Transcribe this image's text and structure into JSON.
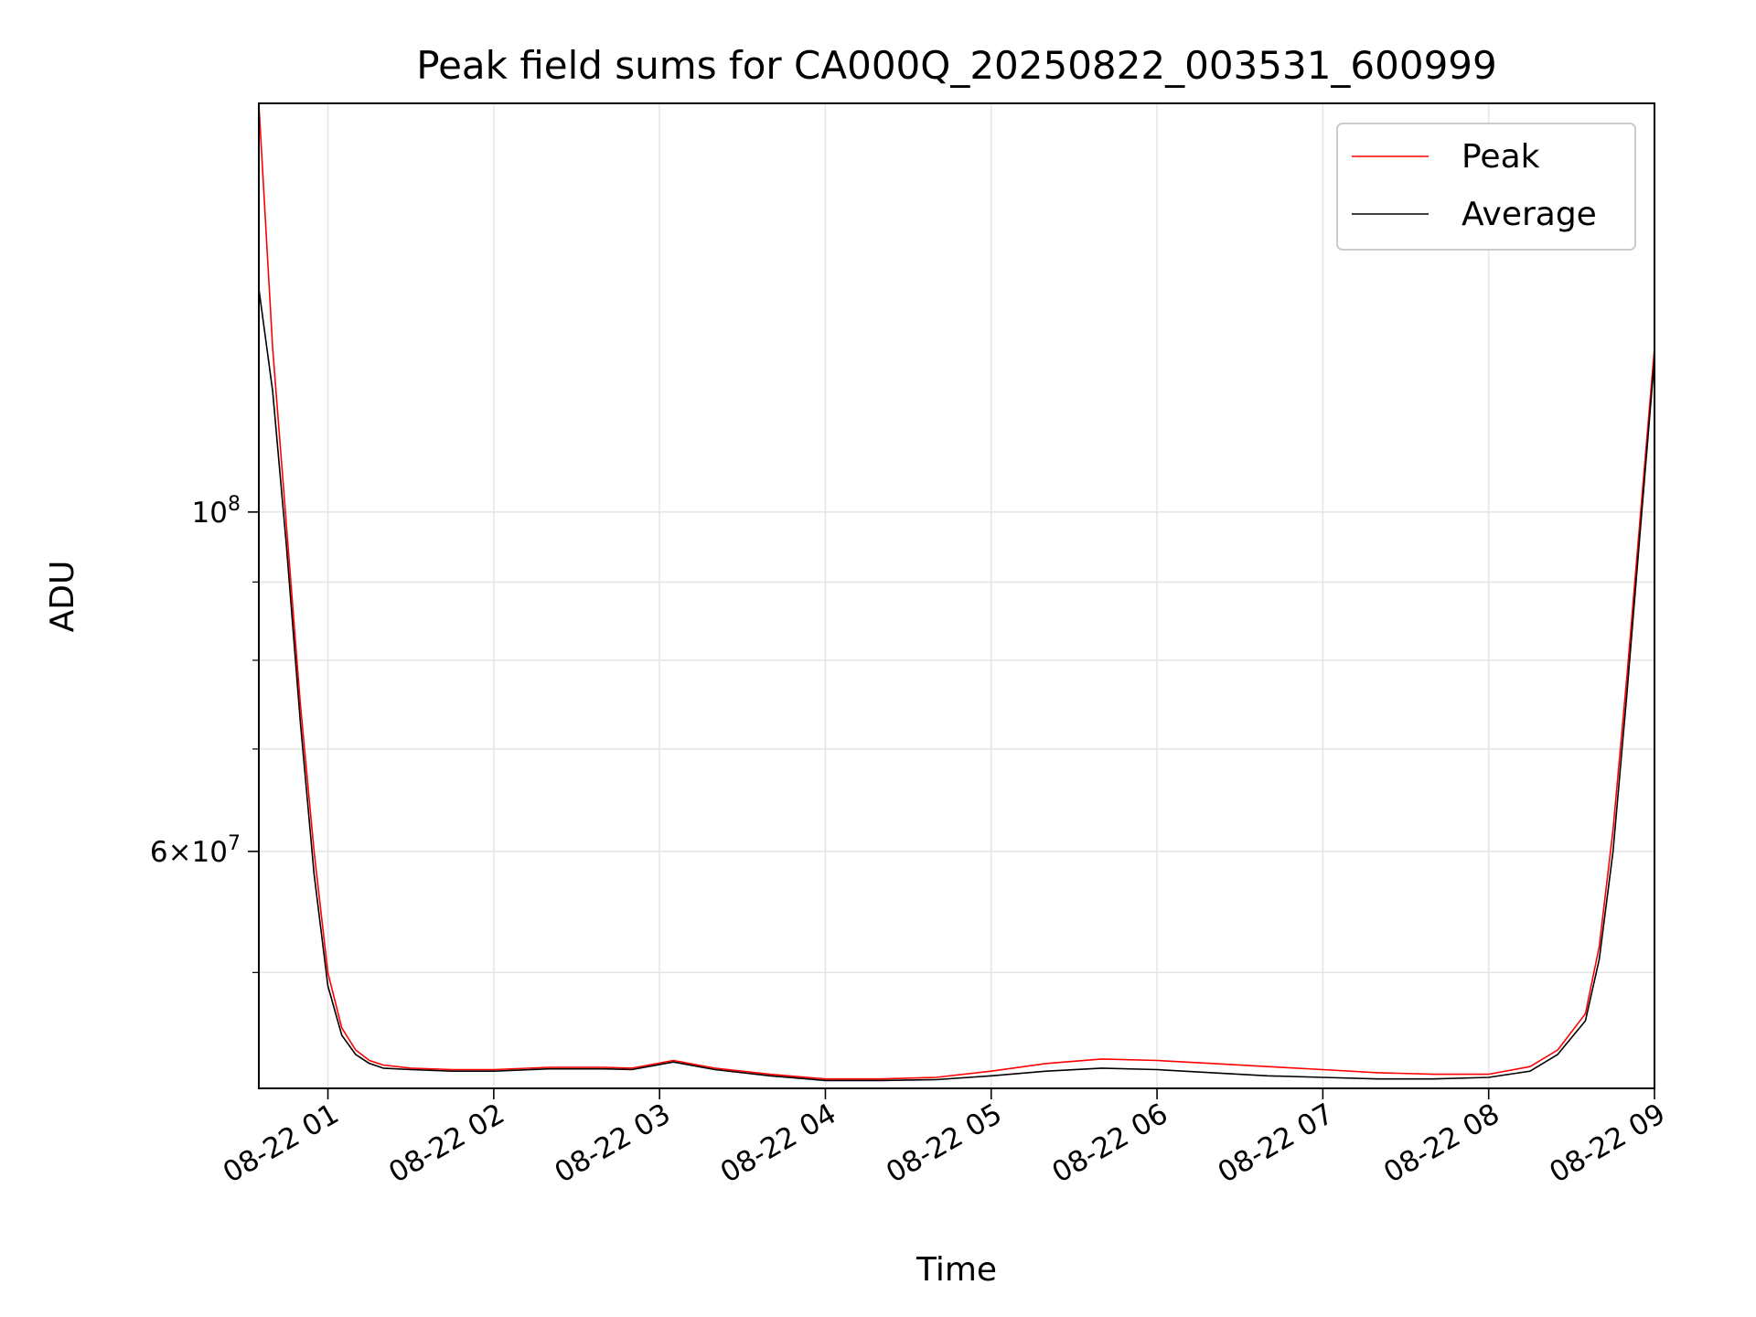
{
  "chart_data": {
    "type": "line",
    "title": "Peak field sums for CA000Q_20250822_003531_600999",
    "xlabel": "Time",
    "ylabel": "ADU",
    "yscale": "log",
    "grid": true,
    "legend_position": "top-right",
    "xlim": [
      "2025-08-22 00:35",
      "2025-08-22 09:00"
    ],
    "ylim": [
      42000000,
      185000000
    ],
    "x_ticks": [
      {
        "value": "2025-08-22 01:00",
        "label": "08-22 01"
      },
      {
        "value": "2025-08-22 02:00",
        "label": "08-22 02"
      },
      {
        "value": "2025-08-22 03:00",
        "label": "08-22 03"
      },
      {
        "value": "2025-08-22 04:00",
        "label": "08-22 04"
      },
      {
        "value": "2025-08-22 05:00",
        "label": "08-22 05"
      },
      {
        "value": "2025-08-22 06:00",
        "label": "08-22 06"
      },
      {
        "value": "2025-08-22 07:00",
        "label": "08-22 07"
      },
      {
        "value": "2025-08-22 08:00",
        "label": "08-22 08"
      },
      {
        "value": "2025-08-22 09:00",
        "label": "08-22 09"
      }
    ],
    "y_major_ticks": [
      {
        "value": 100000000,
        "base": "10",
        "exp": "8",
        "coef": ""
      },
      {
        "value": 60000000,
        "base": "10",
        "exp": "7",
        "coef": "6"
      }
    ],
    "y_minor_ticks": [
      50000000,
      70000000,
      80000000,
      90000000
    ],
    "series": [
      {
        "name": "Peak",
        "color": "#ff0000",
        "x": [
          "2025-08-22 00:35",
          "2025-08-22 00:40",
          "2025-08-22 00:45",
          "2025-08-22 00:50",
          "2025-08-22 00:55",
          "2025-08-22 01:00",
          "2025-08-22 01:05",
          "2025-08-22 01:10",
          "2025-08-22 01:15",
          "2025-08-22 01:20",
          "2025-08-22 01:30",
          "2025-08-22 01:45",
          "2025-08-22 02:00",
          "2025-08-22 02:20",
          "2025-08-22 02:40",
          "2025-08-22 02:50",
          "2025-08-22 03:05",
          "2025-08-22 03:20",
          "2025-08-22 03:40",
          "2025-08-22 04:00",
          "2025-08-22 04:20",
          "2025-08-22 04:40",
          "2025-08-22 05:00",
          "2025-08-22 05:20",
          "2025-08-22 05:40",
          "2025-08-22 06:00",
          "2025-08-22 06:20",
          "2025-08-22 06:40",
          "2025-08-22 07:00",
          "2025-08-22 07:20",
          "2025-08-22 07:40",
          "2025-08-22 08:00",
          "2025-08-22 08:15",
          "2025-08-22 08:25",
          "2025-08-22 08:35",
          "2025-08-22 08:40",
          "2025-08-22 08:45",
          "2025-08-22 08:50",
          "2025-08-22 08:55",
          "2025-08-22 09:00"
        ],
        "values": [
          185000000,
          128000000,
          98000000,
          75000000,
          60000000,
          50000000,
          46000000,
          44500000,
          43800000,
          43500000,
          43300000,
          43200000,
          43200000,
          43350000,
          43350000,
          43300000,
          43800000,
          43300000,
          42900000,
          42600000,
          42600000,
          42700000,
          43100000,
          43600000,
          43900000,
          43800000,
          43600000,
          43400000,
          43200000,
          43000000,
          42900000,
          42900000,
          43400000,
          44500000,
          47000000,
          52000000,
          62000000,
          78000000,
          100000000,
          128000000
        ]
      },
      {
        "name": "Average",
        "color": "#000000",
        "x": [
          "2025-08-22 00:35",
          "2025-08-22 00:40",
          "2025-08-22 00:45",
          "2025-08-22 00:50",
          "2025-08-22 00:55",
          "2025-08-22 01:00",
          "2025-08-22 01:05",
          "2025-08-22 01:10",
          "2025-08-22 01:15",
          "2025-08-22 01:20",
          "2025-08-22 01:30",
          "2025-08-22 01:45",
          "2025-08-22 02:00",
          "2025-08-22 02:20",
          "2025-08-22 02:40",
          "2025-08-22 02:50",
          "2025-08-22 03:05",
          "2025-08-22 03:20",
          "2025-08-22 03:40",
          "2025-08-22 04:00",
          "2025-08-22 04:20",
          "2025-08-22 04:40",
          "2025-08-22 05:00",
          "2025-08-22 05:20",
          "2025-08-22 05:40",
          "2025-08-22 06:00",
          "2025-08-22 06:20",
          "2025-08-22 06:40",
          "2025-08-22 07:00",
          "2025-08-22 07:20",
          "2025-08-22 07:40",
          "2025-08-22 08:00",
          "2025-08-22 08:15",
          "2025-08-22 08:25",
          "2025-08-22 08:35",
          "2025-08-22 08:40",
          "2025-08-22 08:45",
          "2025-08-22 08:50",
          "2025-08-22 08:55",
          "2025-08-22 09:00"
        ],
        "values": [
          140000000,
          120000000,
          95000000,
          73000000,
          58000000,
          49000000,
          45500000,
          44200000,
          43600000,
          43300000,
          43200000,
          43100000,
          43100000,
          43250000,
          43250000,
          43200000,
          43700000,
          43200000,
          42800000,
          42500000,
          42500000,
          42550000,
          42800000,
          43100000,
          43300000,
          43200000,
          43000000,
          42800000,
          42700000,
          42600000,
          42600000,
          42700000,
          43100000,
          44200000,
          46500000,
          51000000,
          60000000,
          76000000,
          98000000,
          126000000
        ]
      }
    ]
  }
}
